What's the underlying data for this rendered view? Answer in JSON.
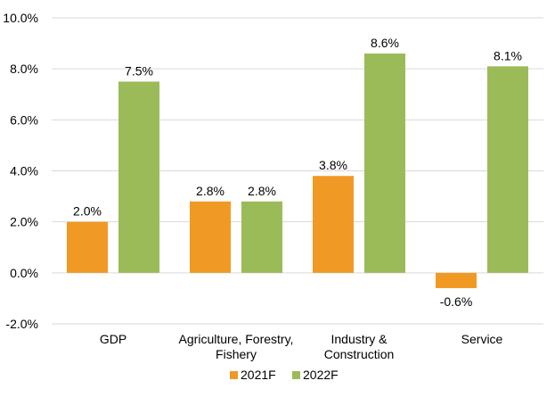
{
  "chart_data": {
    "type": "bar",
    "categories": [
      [
        "GDP"
      ],
      [
        "Agriculture, Forestry,",
        "Fishery"
      ],
      [
        "Industry &",
        "Construction"
      ],
      [
        "Service"
      ]
    ],
    "series": [
      {
        "name": "2021F",
        "color": "#f09a25",
        "values": [
          2.0,
          2.8,
          3.8,
          -0.6
        ],
        "labels": [
          "2.0%",
          "2.8%",
          "3.8%",
          "-0.6%"
        ]
      },
      {
        "name": "2022F",
        "color": "#9bbb59",
        "values": [
          7.5,
          2.8,
          8.6,
          8.1
        ],
        "labels": [
          "7.5%",
          "2.8%",
          "8.6%",
          "8.1%"
        ]
      }
    ],
    "ylim": [
      -2.0,
      10.0
    ],
    "yticks": [
      -2.0,
      0.0,
      2.0,
      4.0,
      6.0,
      8.0,
      10.0
    ],
    "ytick_labels": [
      "-2.0%",
      "0.0%",
      "2.0%",
      "4.0%",
      "6.0%",
      "8.0%",
      "10.0%"
    ],
    "grid": true,
    "legend_position": "bottom"
  }
}
